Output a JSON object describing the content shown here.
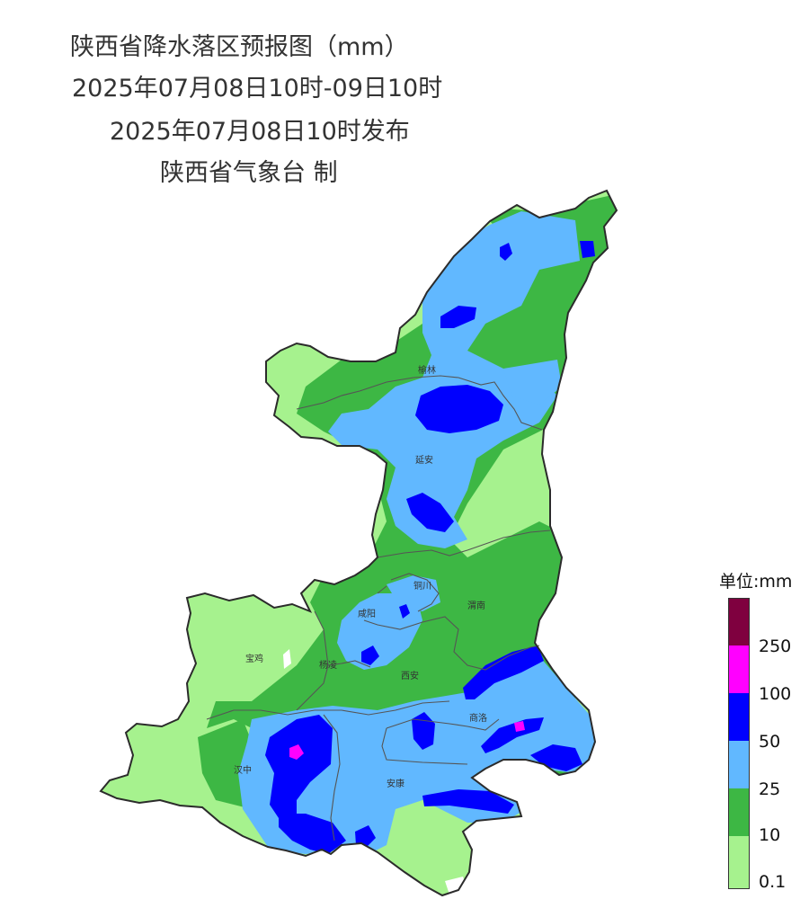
{
  "header": {
    "title": "陕西省降水落区预报图（mm）",
    "period": "2025年07月08日10时-09日10时",
    "issued": "2025年07月08日10时发布",
    "issuer": "陕西省气象台 制"
  },
  "cities": {
    "yulin": "榆林",
    "yanan": "延安",
    "tongchuan": "铜川",
    "xianyang": "咸阳",
    "weinan": "渭南",
    "baoji": "宝鸡",
    "yangling": "杨凌",
    "xian": "西安",
    "shangluo": "商洛",
    "hanzhong": "汉中",
    "ankang": "安康"
  },
  "legend": {
    "title": "单位:mm",
    "labels": [
      "250",
      "100",
      "50",
      "25",
      "10",
      "0.1"
    ],
    "colors": {
      "250+": "#7f003f",
      "100-250": "#ff00ff",
      "50-100": "#0000fe",
      "25-50": "#61b8ff",
      "10-25": "#3db744",
      "0.1-10": "#a6f28e"
    }
  }
}
